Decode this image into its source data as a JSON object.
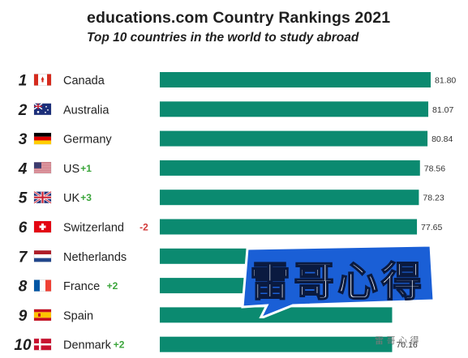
{
  "header": {
    "title": "educations.com Country Rankings 2021",
    "subtitle": "Top 10 countries in the world to study abroad"
  },
  "chart_data": {
    "type": "bar",
    "orientation": "horizontal",
    "title": "educations.com Country Rankings 2021",
    "subtitle": "Top 10 countries in the world to study abroad",
    "xlabel": "",
    "ylabel": "",
    "xlim": [
      0,
      81.8
    ],
    "grid": false,
    "legend": "none",
    "bar_color": "#0b8a70",
    "ranks": [
      "1",
      "2",
      "3",
      "4",
      "5",
      "6",
      "7",
      "8",
      "9",
      "10"
    ],
    "categories": [
      "Canada",
      "Australia",
      "Germany",
      "US",
      "UK",
      "Switzerland",
      "Netherlands",
      "France",
      "Spain",
      "Denmark"
    ],
    "values": [
      81.8,
      81.07,
      80.84,
      78.56,
      78.23,
      77.65,
      null,
      null,
      null,
      70.16
    ],
    "value_labels": [
      "81.80",
      "81.07",
      "80.84",
      "78.56",
      "78.23",
      "77.65",
      "",
      "",
      "",
      "70.16"
    ],
    "rank_changes": [
      "",
      "",
      "",
      "+1",
      "+3",
      "-2",
      "",
      "+2",
      "",
      "+2"
    ],
    "change_colors": {
      "positive": "#3aa53a",
      "negative": "#d23a3a"
    },
    "flags": [
      "canada-flag",
      "australia-flag",
      "germany-flag",
      "us-flag",
      "uk-flag",
      "switzerland-flag",
      "netherlands-flag",
      "france-flag",
      "spain-flag",
      "denmark-flag"
    ]
  },
  "overlay": {
    "badge_text": "雷哥心得",
    "badge_color": "#1a5fd6",
    "watermark": "雷 哥 心 得"
  }
}
